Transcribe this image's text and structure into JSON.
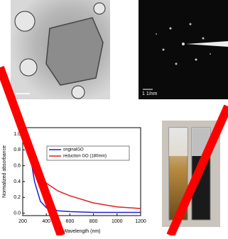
{
  "chart_data": {
    "type": "line",
    "xlabel": "Wavelength (nm)",
    "ylabel": "Normalized absorbance",
    "x": [
      200,
      250,
      300,
      350,
      400,
      500,
      600,
      800,
      1000,
      1200
    ],
    "series": [
      {
        "name": "originalGO",
        "color": "#1f1fd0",
        "values": [
          1.0,
          0.85,
          0.4,
          0.15,
          0.07,
          0.03,
          0.02,
          0.01,
          0.01,
          0.01
        ]
      },
      {
        "name": "reduction GO (180min)",
        "color": "#e02020",
        "values": [
          0.9,
          0.95,
          0.7,
          0.5,
          0.38,
          0.28,
          0.22,
          0.13,
          0.08,
          0.06
        ]
      }
    ],
    "xlim": [
      200,
      1200
    ],
    "ylim": [
      -0.03,
      1.08
    ],
    "xticks": [
      200,
      400,
      600,
      800,
      1000,
      1200
    ],
    "yticks": [
      {
        "value": 0,
        "label": "0.0"
      },
      {
        "value": 0.2,
        "label": "0.2"
      },
      {
        "value": 0.4,
        "label": "0.4"
      },
      {
        "value": 0.6,
        "label": "0.6"
      },
      {
        "value": 0.8,
        "label": "0.8"
      },
      {
        "value": 1,
        "label": "1.0"
      }
    ]
  },
  "panels": {
    "saed_scale": "1 1/nm"
  }
}
